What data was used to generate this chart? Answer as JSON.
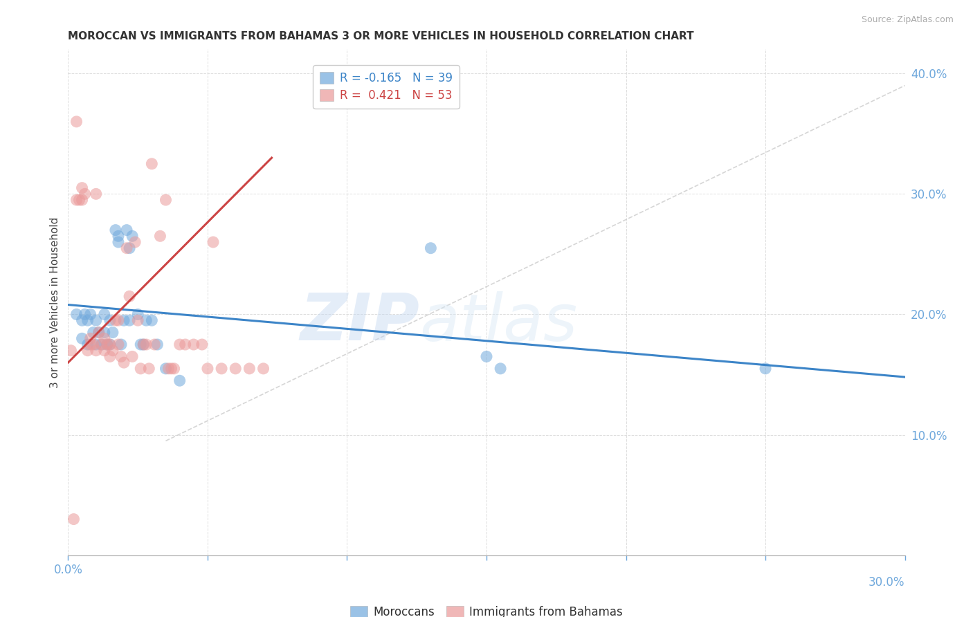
{
  "title": "MOROCCAN VS IMMIGRANTS FROM BAHAMAS 3 OR MORE VEHICLES IN HOUSEHOLD CORRELATION CHART",
  "source": "Source: ZipAtlas.com",
  "ylabel_label": "3 or more Vehicles in Household",
  "xlim": [
    0.0,
    0.3
  ],
  "ylim": [
    0.0,
    0.42
  ],
  "xtick_vals": [
    0.0,
    0.05,
    0.1,
    0.15,
    0.2,
    0.25,
    0.3
  ],
  "ytick_vals": [
    0.0,
    0.1,
    0.2,
    0.3,
    0.4
  ],
  "legend_r_blue": "-0.165",
  "legend_n_blue": "39",
  "legend_r_pink": "0.421",
  "legend_n_pink": "53",
  "blue_color": "#6fa8dc",
  "pink_color": "#ea9999",
  "blue_line_color": "#3d85c8",
  "pink_line_color": "#cc4444",
  "watermark_zip": "ZIP",
  "watermark_atlas": "atlas",
  "blue_scatter_x": [
    0.003,
    0.005,
    0.005,
    0.006,
    0.007,
    0.007,
    0.008,
    0.009,
    0.01,
    0.01,
    0.011,
    0.012,
    0.013,
    0.013,
    0.014,
    0.015,
    0.015,
    0.016,
    0.017,
    0.018,
    0.018,
    0.019,
    0.02,
    0.021,
    0.022,
    0.022,
    0.023,
    0.025,
    0.026,
    0.027,
    0.028,
    0.03,
    0.032,
    0.035,
    0.04,
    0.13,
    0.15,
    0.155,
    0.25
  ],
  "blue_scatter_y": [
    0.2,
    0.195,
    0.18,
    0.2,
    0.175,
    0.195,
    0.2,
    0.185,
    0.175,
    0.195,
    0.185,
    0.175,
    0.2,
    0.185,
    0.175,
    0.195,
    0.175,
    0.185,
    0.27,
    0.265,
    0.26,
    0.175,
    0.195,
    0.27,
    0.255,
    0.195,
    0.265,
    0.2,
    0.175,
    0.175,
    0.195,
    0.195,
    0.175,
    0.155,
    0.145,
    0.255,
    0.165,
    0.155,
    0.155
  ],
  "pink_scatter_x": [
    0.001,
    0.002,
    0.003,
    0.004,
    0.005,
    0.005,
    0.006,
    0.007,
    0.008,
    0.008,
    0.009,
    0.01,
    0.01,
    0.011,
    0.012,
    0.013,
    0.013,
    0.014,
    0.015,
    0.015,
    0.016,
    0.017,
    0.018,
    0.018,
    0.019,
    0.02,
    0.021,
    0.022,
    0.023,
    0.024,
    0.025,
    0.026,
    0.027,
    0.028,
    0.029,
    0.03,
    0.031,
    0.033,
    0.035,
    0.036,
    0.037,
    0.038,
    0.04,
    0.042,
    0.045,
    0.048,
    0.05,
    0.052,
    0.055,
    0.06,
    0.065,
    0.07,
    0.003
  ],
  "pink_scatter_y": [
    0.17,
    0.03,
    0.295,
    0.295,
    0.305,
    0.295,
    0.3,
    0.17,
    0.175,
    0.18,
    0.175,
    0.3,
    0.17,
    0.185,
    0.175,
    0.17,
    0.18,
    0.175,
    0.175,
    0.165,
    0.17,
    0.195,
    0.195,
    0.175,
    0.165,
    0.16,
    0.255,
    0.215,
    0.165,
    0.26,
    0.195,
    0.155,
    0.175,
    0.175,
    0.155,
    0.325,
    0.175,
    0.265,
    0.295,
    0.155,
    0.155,
    0.155,
    0.175,
    0.175,
    0.175,
    0.175,
    0.155,
    0.26,
    0.155,
    0.155,
    0.155,
    0.155,
    0.36
  ],
  "blue_trend_x": [
    0.0,
    0.3
  ],
  "blue_trend_y": [
    0.208,
    0.148
  ],
  "pink_trend_x": [
    0.0,
    0.073
  ],
  "pink_trend_y": [
    0.16,
    0.33
  ],
  "diag_line_x": [
    0.035,
    0.3
  ],
  "diag_line_y": [
    0.095,
    0.39
  ]
}
